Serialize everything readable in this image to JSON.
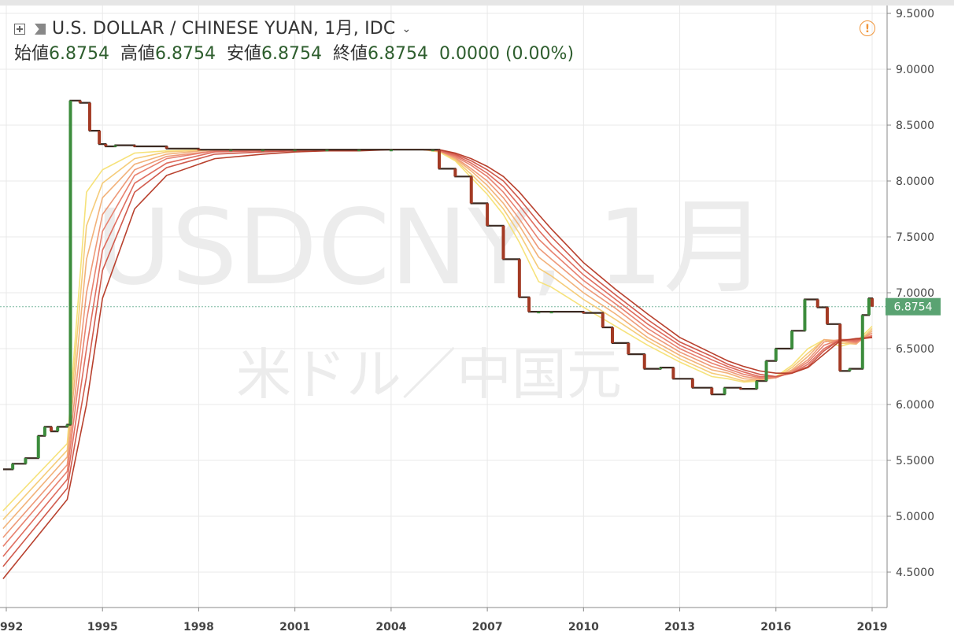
{
  "header": {
    "symbol_title": "U.S. DOLLAR / CHINESE YUAN, 1月, IDC",
    "ohlc": [
      {
        "label": "始値",
        "value": "6.8754"
      },
      {
        "label": "高値",
        "value": "6.8754"
      },
      {
        "label": "安値",
        "value": "6.8754"
      },
      {
        "label": "終値",
        "value": "6.8754"
      }
    ],
    "change": "0.0000 (0.00%)"
  },
  "watermark": {
    "symbol": "USDCNY, 1月",
    "name": "米ドル／中国元"
  },
  "price_tag": "6.8754",
  "colors": {
    "up": "#3c8c3c",
    "down": "#a33a24",
    "grid": "#e9e9e9",
    "price_tag": "#5aa372",
    "ribbon": [
      "#f6e27a",
      "#f5cc7a",
      "#f2b27a",
      "#ee9978",
      "#e88270",
      "#df6d5f",
      "#d05a4c",
      "#b8402d"
    ]
  },
  "chart_data": {
    "type": "line",
    "x_axis_labels": [
      "992",
      "1995",
      "1998",
      "2001",
      "2004",
      "2007",
      "2010",
      "2013",
      "2016",
      "2019"
    ],
    "y_axis_labels": [
      "9.5000",
      "9.0000",
      "8.5000",
      "8.0000",
      "7.5000",
      "7.0000",
      "6.5000",
      "6.0000",
      "5.5000",
      "5.0000",
      "4.5000"
    ],
    "xlim": [
      1991.9,
      2019.0
    ],
    "ylim": [
      4.37,
      9.55
    ],
    "price_line": 6.8754,
    "series": [
      {
        "x": [
          1991.9,
          1992.2,
          1992.6,
          1993.0,
          1993.2,
          1993.4,
          1993.6,
          1993.9,
          1994.0,
          1994.3,
          1994.6,
          1994.9,
          1995.1,
          1995.4,
          1996.0,
          1997.0,
          1998.0,
          1999.0,
          2000.0,
          2001.0,
          2002.0,
          2003.0,
          2004.0,
          2005.3,
          2005.5,
          2006.0,
          2006.5,
          2007.0,
          2007.5,
          2008.0,
          2008.3,
          2008.6,
          2009.0,
          2010.0,
          2010.6,
          2010.9,
          2011.4,
          2011.9,
          2012.4,
          2012.8,
          2013.4,
          2014.0,
          2014.4,
          2014.9,
          2015.4,
          2015.7,
          2016.0,
          2016.5,
          2016.9,
          2017.3,
          2017.6,
          2018.0,
          2018.3,
          2018.7,
          2018.9,
          2019.0
        ],
        "y": [
          5.42,
          5.47,
          5.52,
          5.72,
          5.8,
          5.76,
          5.8,
          5.82,
          8.72,
          8.7,
          8.45,
          8.33,
          8.31,
          8.32,
          8.31,
          8.29,
          8.28,
          8.28,
          8.28,
          8.28,
          8.28,
          8.28,
          8.28,
          8.28,
          8.11,
          8.04,
          7.8,
          7.6,
          7.3,
          6.96,
          6.83,
          6.83,
          6.83,
          6.82,
          6.69,
          6.55,
          6.45,
          6.32,
          6.33,
          6.23,
          6.15,
          6.09,
          6.15,
          6.14,
          6.21,
          6.39,
          6.5,
          6.66,
          6.94,
          6.87,
          6.72,
          6.3,
          6.32,
          6.8,
          6.95,
          6.8754
        ]
      },
      {
        "x": [
          1991.9,
          1993.9,
          1994.5,
          1995.0,
          1996.0,
          1997.0,
          1998.5,
          2000.0,
          2001.0,
          2002.0,
          2003.0,
          2004.0,
          2005.0,
          2005.5,
          2006.0,
          2006.5,
          2007.0,
          2007.5,
          2008.0,
          2008.6,
          2009.0,
          2010.0,
          2011.0,
          2012.0,
          2013.0,
          2014.0,
          2014.5,
          2015.0,
          2015.5,
          2016.0,
          2016.5,
          2017.0,
          2017.5,
          2018.0,
          2018.5,
          2019.0
        ],
        "y": [
          5.05,
          5.65,
          7.9,
          8.1,
          8.25,
          8.27,
          8.28,
          8.28,
          8.28,
          8.28,
          8.28,
          8.28,
          8.28,
          8.26,
          8.18,
          8.03,
          7.88,
          7.7,
          7.45,
          7.1,
          7.05,
          6.87,
          6.7,
          6.53,
          6.38,
          6.25,
          6.23,
          6.2,
          6.21,
          6.25,
          6.35,
          6.5,
          6.58,
          6.52,
          6.56,
          6.7
        ]
      },
      {
        "x": [
          1991.9,
          1993.9,
          1994.5,
          1995.0,
          1996.0,
          1997.0,
          1998.5,
          2000.0,
          2001.0,
          2002.0,
          2003.0,
          2004.0,
          2005.0,
          2005.5,
          2006.0,
          2006.5,
          2007.0,
          2007.5,
          2008.0,
          2008.6,
          2009.0,
          2010.0,
          2011.0,
          2012.0,
          2013.0,
          2014.0,
          2014.5,
          2015.0,
          2015.5,
          2016.0,
          2016.5,
          2017.0,
          2017.5,
          2018.0,
          2018.5,
          2019.0
        ],
        "y": [
          4.97,
          5.59,
          7.6,
          7.98,
          8.2,
          8.26,
          8.28,
          8.28,
          8.28,
          8.28,
          8.28,
          8.28,
          8.28,
          8.27,
          8.19,
          8.06,
          7.92,
          7.75,
          7.53,
          7.22,
          7.15,
          6.94,
          6.76,
          6.57,
          6.41,
          6.28,
          6.25,
          6.21,
          6.22,
          6.24,
          6.33,
          6.46,
          6.58,
          6.55,
          6.54,
          6.68
        ]
      },
      {
        "x": [
          1991.9,
          1993.9,
          1994.5,
          1995.0,
          1996.0,
          1997.0,
          1998.5,
          2000.0,
          2001.0,
          2002.0,
          2003.0,
          2004.0,
          2005.0,
          2005.5,
          2006.0,
          2006.5,
          2007.0,
          2007.5,
          2008.0,
          2008.6,
          2009.0,
          2010.0,
          2011.0,
          2012.0,
          2013.0,
          2014.0,
          2014.5,
          2015.0,
          2015.5,
          2016.0,
          2016.5,
          2017.0,
          2017.5,
          2018.0,
          2018.5,
          2019.0
        ],
        "y": [
          4.89,
          5.53,
          7.3,
          7.85,
          8.15,
          8.24,
          8.28,
          8.28,
          8.28,
          8.28,
          8.28,
          8.28,
          8.28,
          8.27,
          8.2,
          8.09,
          7.96,
          7.8,
          7.6,
          7.32,
          7.23,
          7.0,
          6.81,
          6.6,
          6.44,
          6.31,
          6.28,
          6.23,
          6.22,
          6.24,
          6.31,
          6.43,
          6.58,
          6.57,
          6.54,
          6.66
        ]
      },
      {
        "x": [
          1991.9,
          1993.9,
          1994.5,
          1995.0,
          1996.0,
          1997.0,
          1998.5,
          2000.0,
          2001.0,
          2002.0,
          2003.0,
          2004.0,
          2005.0,
          2005.5,
          2006.0,
          2006.5,
          2007.0,
          2007.5,
          2008.0,
          2008.6,
          2009.0,
          2010.0,
          2011.0,
          2012.0,
          2013.0,
          2014.0,
          2014.5,
          2015.0,
          2015.5,
          2016.0,
          2016.5,
          2017.0,
          2017.5,
          2018.0,
          2018.5,
          2019.0
        ],
        "y": [
          4.81,
          5.46,
          7.0,
          7.7,
          8.1,
          8.22,
          8.27,
          8.28,
          8.28,
          8.28,
          8.28,
          8.28,
          8.28,
          8.27,
          8.21,
          8.11,
          8.0,
          7.85,
          7.66,
          7.4,
          7.3,
          7.06,
          6.86,
          6.64,
          6.47,
          6.34,
          6.3,
          6.25,
          6.23,
          6.24,
          6.3,
          6.4,
          6.56,
          6.58,
          6.55,
          6.64
        ]
      },
      {
        "x": [
          1991.9,
          1993.9,
          1994.5,
          1995.0,
          1996.0,
          1997.0,
          1998.5,
          2000.0,
          2001.0,
          2002.0,
          2003.0,
          2004.0,
          2005.0,
          2005.5,
          2006.0,
          2006.5,
          2007.0,
          2007.5,
          2008.0,
          2008.6,
          2009.0,
          2010.0,
          2011.0,
          2012.0,
          2013.0,
          2014.0,
          2014.5,
          2015.0,
          2015.5,
          2016.0,
          2016.5,
          2017.0,
          2017.5,
          2018.0,
          2018.5,
          2019.0
        ],
        "y": [
          4.73,
          5.4,
          6.75,
          7.55,
          8.05,
          8.2,
          8.27,
          8.28,
          8.28,
          8.28,
          8.28,
          8.28,
          8.28,
          8.27,
          8.22,
          8.14,
          8.04,
          7.9,
          7.72,
          7.48,
          7.37,
          7.11,
          6.9,
          6.68,
          6.5,
          6.37,
          6.32,
          6.27,
          6.24,
          6.24,
          6.29,
          6.38,
          6.53,
          6.58,
          6.56,
          6.62
        ]
      },
      {
        "x": [
          1991.9,
          1993.9,
          1994.5,
          1995.0,
          1996.0,
          1997.0,
          1998.5,
          2000.0,
          2001.0,
          2002.0,
          2003.0,
          2004.0,
          2005.0,
          2005.5,
          2006.0,
          2006.5,
          2007.0,
          2007.5,
          2008.0,
          2008.6,
          2009.0,
          2010.0,
          2011.0,
          2012.0,
          2013.0,
          2014.0,
          2014.5,
          2015.0,
          2015.5,
          2016.0,
          2016.5,
          2017.0,
          2017.5,
          2018.0,
          2018.5,
          2019.0
        ],
        "y": [
          4.64,
          5.33,
          6.5,
          7.38,
          7.98,
          8.16,
          8.26,
          8.27,
          8.28,
          8.28,
          8.28,
          8.28,
          8.28,
          8.27,
          8.23,
          8.16,
          8.07,
          7.95,
          7.78,
          7.56,
          7.43,
          7.16,
          6.94,
          6.72,
          6.53,
          6.4,
          6.34,
          6.29,
          6.25,
          6.25,
          6.28,
          6.36,
          6.5,
          6.58,
          6.57,
          6.61
        ]
      },
      {
        "x": [
          1991.9,
          1993.9,
          1994.5,
          1995.0,
          1996.0,
          1997.0,
          1998.5,
          2000.0,
          2001.0,
          2002.0,
          2003.0,
          2004.0,
          2005.0,
          2005.5,
          2006.0,
          2006.5,
          2007.0,
          2007.5,
          2008.0,
          2008.6,
          2009.0,
          2010.0,
          2011.0,
          2012.0,
          2013.0,
          2014.0,
          2014.5,
          2015.0,
          2015.5,
          2016.0,
          2016.5,
          2017.0,
          2017.5,
          2018.0,
          2018.5,
          2019.0
        ],
        "y": [
          4.55,
          5.25,
          6.25,
          7.2,
          7.9,
          8.12,
          8.24,
          8.26,
          8.27,
          8.28,
          8.28,
          8.28,
          8.28,
          8.28,
          8.24,
          8.18,
          8.1,
          8.0,
          7.84,
          7.63,
          7.5,
          7.21,
          6.98,
          6.76,
          6.56,
          6.43,
          6.36,
          6.31,
          6.27,
          6.25,
          6.28,
          6.34,
          6.48,
          6.58,
          6.58,
          6.6
        ]
      },
      {
        "x": [
          1991.9,
          1993.9,
          1994.5,
          1995.0,
          1996.0,
          1997.0,
          1998.5,
          2000.0,
          2001.0,
          2002.0,
          2003.0,
          2004.0,
          2005.0,
          2005.5,
          2006.0,
          2006.5,
          2007.0,
          2007.5,
          2008.0,
          2008.6,
          2009.0,
          2010.0,
          2011.0,
          2012.0,
          2013.0,
          2014.0,
          2014.5,
          2015.0,
          2015.5,
          2016.0,
          2016.5,
          2017.0,
          2017.5,
          2018.0,
          2018.5,
          2019.0
        ],
        "y": [
          4.44,
          5.15,
          6.0,
          6.95,
          7.75,
          8.05,
          8.2,
          8.24,
          8.26,
          8.27,
          8.27,
          8.28,
          8.28,
          8.28,
          8.25,
          8.2,
          8.13,
          8.04,
          7.9,
          7.7,
          7.57,
          7.27,
          7.03,
          6.81,
          6.6,
          6.46,
          6.39,
          6.34,
          6.3,
          6.28,
          6.28,
          6.33,
          6.45,
          6.57,
          6.59,
          6.6
        ]
      }
    ]
  }
}
